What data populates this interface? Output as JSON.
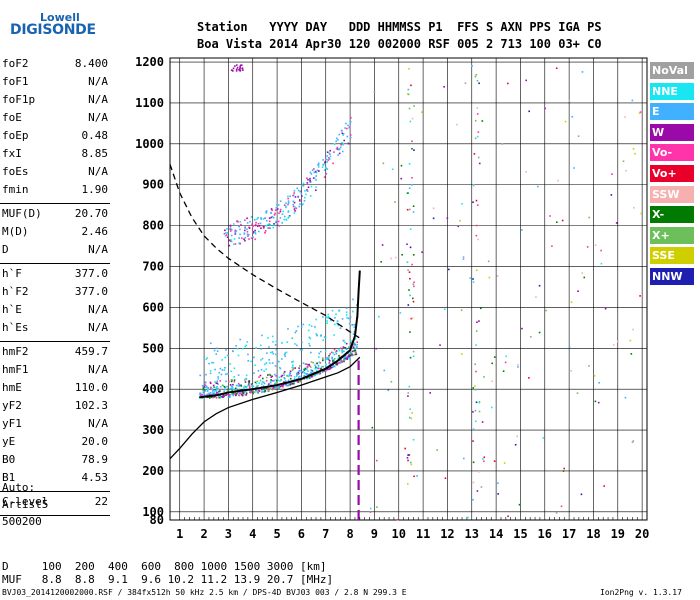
{
  "logo": {
    "top": "Lowell",
    "bottom": "DIGISONDE"
  },
  "header": {
    "labels": "Station   YYYY DAY   DDD HHMMSS P1  FFS S AXN PPS IGA PS",
    "values": "Boa Vista 2014 Apr30 120 002000 RSF 005 2 713 100 03+ C0"
  },
  "parameters": [
    {
      "group": [
        {
          "name": "foF2",
          "value": "8.400"
        },
        {
          "name": "foF1",
          "value": "N/A"
        },
        {
          "name": "foF1p",
          "value": "N/A"
        },
        {
          "name": "foE",
          "value": "N/A"
        },
        {
          "name": "foEp",
          "value": "0.48"
        },
        {
          "name": "fxI",
          "value": "8.85"
        },
        {
          "name": "foEs",
          "value": "N/A"
        },
        {
          "name": "fmin",
          "value": "1.90"
        }
      ]
    },
    {
      "group": [
        {
          "name": "MUF(D)",
          "value": "20.70"
        },
        {
          "name": "M(D)",
          "value": "2.46"
        },
        {
          "name": "D",
          "value": "N/A"
        }
      ]
    },
    {
      "group": [
        {
          "name": "h`F",
          "value": "377.0"
        },
        {
          "name": "h`F2",
          "value": "377.0"
        },
        {
          "name": "h`E",
          "value": "N/A"
        },
        {
          "name": "h`Es",
          "value": "N/A"
        }
      ]
    },
    {
      "group": [
        {
          "name": "hmF2",
          "value": "459.7"
        },
        {
          "name": "hmF1",
          "value": "N/A"
        },
        {
          "name": "hmE",
          "value": "110.0"
        },
        {
          "name": "yF2",
          "value": "102.3"
        },
        {
          "name": "yF1",
          "value": "N/A"
        },
        {
          "name": "yE",
          "value": "20.0"
        },
        {
          "name": "B0",
          "value": "78.9"
        },
        {
          "name": "B1",
          "value": "4.53"
        }
      ]
    },
    {
      "group": [
        {
          "name": "C-level",
          "value": "22"
        }
      ]
    }
  ],
  "auto": {
    "line1": "Auto:",
    "line2": "Artist5",
    "line3": "500200"
  },
  "legend": [
    {
      "label": "NoVal",
      "color": "#a0a0a0"
    },
    {
      "label": "NNE",
      "color": "#19e6f0"
    },
    {
      "label": "E",
      "color": "#40b0ff"
    },
    {
      "label": "W",
      "color": "#9a0aa8"
    },
    {
      "label": "Vo-",
      "color": "#ff33aa"
    },
    {
      "label": "Vo+",
      "color": "#e8002a"
    },
    {
      "label": "SSW",
      "color": "#f6b0b0"
    },
    {
      "label": "X-",
      "color": "#007a00"
    },
    {
      "label": "X+",
      "color": "#6cbf5a"
    },
    {
      "label": "SSE",
      "color": "#cfcf00"
    },
    {
      "label": "NNW",
      "color": "#1e1eb0"
    }
  ],
  "muf_table": {
    "row1": "D     100  200  400  600  800 1000 1500 3000 [km]",
    "row2": "MUF   8.8  8.8  9.1  9.6 10.2 11.2 13.9 20.7 [MHz]"
  },
  "footer": {
    "left": "BVJ03_2014120002000.RSF / 384fx512h 50 kHz 2.5 km / DPS-4D BVJ03 003 / 2.8 N 299.3 E",
    "right": "Ion2Png v. 1.3.17"
  },
  "chart_data": {
    "type": "scatter",
    "xlim": [
      0.6,
      20.2
    ],
    "ylim": [
      80,
      1210
    ],
    "xticks": [
      1,
      2,
      3,
      4,
      5,
      6,
      7,
      8,
      9,
      10,
      11,
      12,
      13,
      14,
      15,
      16,
      17,
      18,
      19,
      20
    ],
    "yticks": [
      80,
      100,
      200,
      300,
      400,
      500,
      600,
      700,
      800,
      900,
      1000,
      1100,
      1200
    ],
    "grid": true,
    "xlabel": "",
    "ylabel": "",
    "series": [
      {
        "role": "profile",
        "color": "#000000",
        "x": [
          0.6,
          1.0,
          1.5,
          2.0,
          2.5,
          3.0,
          4.0,
          5.0,
          6.0,
          7.0,
          7.5,
          8.0,
          8.4
        ],
        "y": [
          230,
          255,
          290,
          320,
          340,
          355,
          375,
          392,
          410,
          430,
          440,
          455,
          478
        ]
      },
      {
        "role": "dashed",
        "color": "#000000",
        "x": [
          0.6,
          1.0,
          1.5,
          2.0,
          2.5,
          3.0,
          4.0,
          5.0,
          6.0,
          7.0,
          7.5,
          8.0,
          8.4
        ],
        "y": [
          950,
          880,
          820,
          775,
          745,
          720,
          680,
          645,
          612,
          580,
          560,
          540,
          525
        ]
      },
      {
        "role": "trace",
        "color": "#000000",
        "x": [
          1.8,
          2.5,
          3.0,
          4.0,
          5.0,
          6.0,
          7.0,
          7.5,
          8.0,
          8.2,
          8.3,
          8.35,
          8.4
        ],
        "y": [
          380,
          385,
          392,
          400,
          410,
          425,
          450,
          470,
          495,
          530,
          580,
          640,
          690
        ]
      },
      {
        "role": "second-hop",
        "color": "#ff33aa",
        "x": [
          2.8,
          3.5,
          4.0,
          5.0,
          6.0,
          7.0,
          7.5,
          7.8,
          8.0
        ],
        "y": [
          770,
          790,
          810,
          835,
          860,
          900,
          945,
          990,
          1040
        ]
      },
      {
        "role": "vertical-dash",
        "color": "#9a0aa8",
        "x": [
          8.35,
          8.35
        ],
        "y": [
          80,
          470
        ]
      }
    ]
  }
}
